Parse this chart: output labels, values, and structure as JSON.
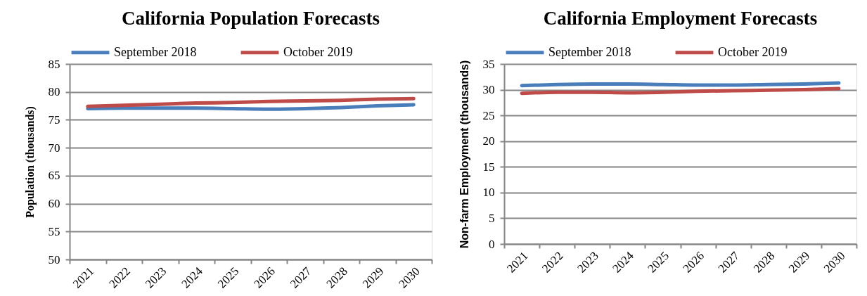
{
  "chart_data": [
    {
      "type": "line",
      "title": "California Population Forecasts",
      "ylabel": "Population (thousands)",
      "categories": [
        "2021",
        "2022",
        "2023",
        "2024",
        "2025",
        "2026",
        "2027",
        "2028",
        "2029",
        "2030"
      ],
      "series": [
        {
          "name": "September 2018",
          "color": "#4a7ebb",
          "values": [
            77.0,
            77.1,
            77.1,
            77.1,
            77.0,
            76.9,
            77.0,
            77.2,
            77.5,
            77.7
          ]
        },
        {
          "name": "October 2019",
          "color": "#be4b48",
          "values": [
            77.4,
            77.6,
            77.8,
            78.0,
            78.1,
            78.3,
            78.4,
            78.5,
            78.7,
            78.8
          ]
        }
      ],
      "ylim": [
        50,
        85
      ],
      "yticks": [
        50,
        55,
        60,
        65,
        70,
        75,
        80,
        85
      ],
      "grid": "y",
      "legend": "top"
    },
    {
      "type": "line",
      "title": "California Employment Forecasts",
      "ylabel": "Non-farm Employment (thousands)",
      "categories": [
        "2021",
        "2022",
        "2023",
        "2024",
        "2025",
        "2026",
        "2027",
        "2028",
        "2029",
        "2030"
      ],
      "series": [
        {
          "name": "September 2018",
          "color": "#4a7ebb",
          "values": [
            30.8,
            31.0,
            31.1,
            31.1,
            31.0,
            30.9,
            30.9,
            31.0,
            31.1,
            31.3
          ]
        },
        {
          "name": "October 2019",
          "color": "#be4b48",
          "values": [
            29.3,
            29.5,
            29.5,
            29.4,
            29.5,
            29.7,
            29.8,
            29.9,
            30.0,
            30.2
          ]
        }
      ],
      "ylim": [
        0,
        35
      ],
      "yticks": [
        0,
        5,
        10,
        15,
        20,
        25,
        30,
        35
      ],
      "grid": "y",
      "legend": "top"
    }
  ]
}
